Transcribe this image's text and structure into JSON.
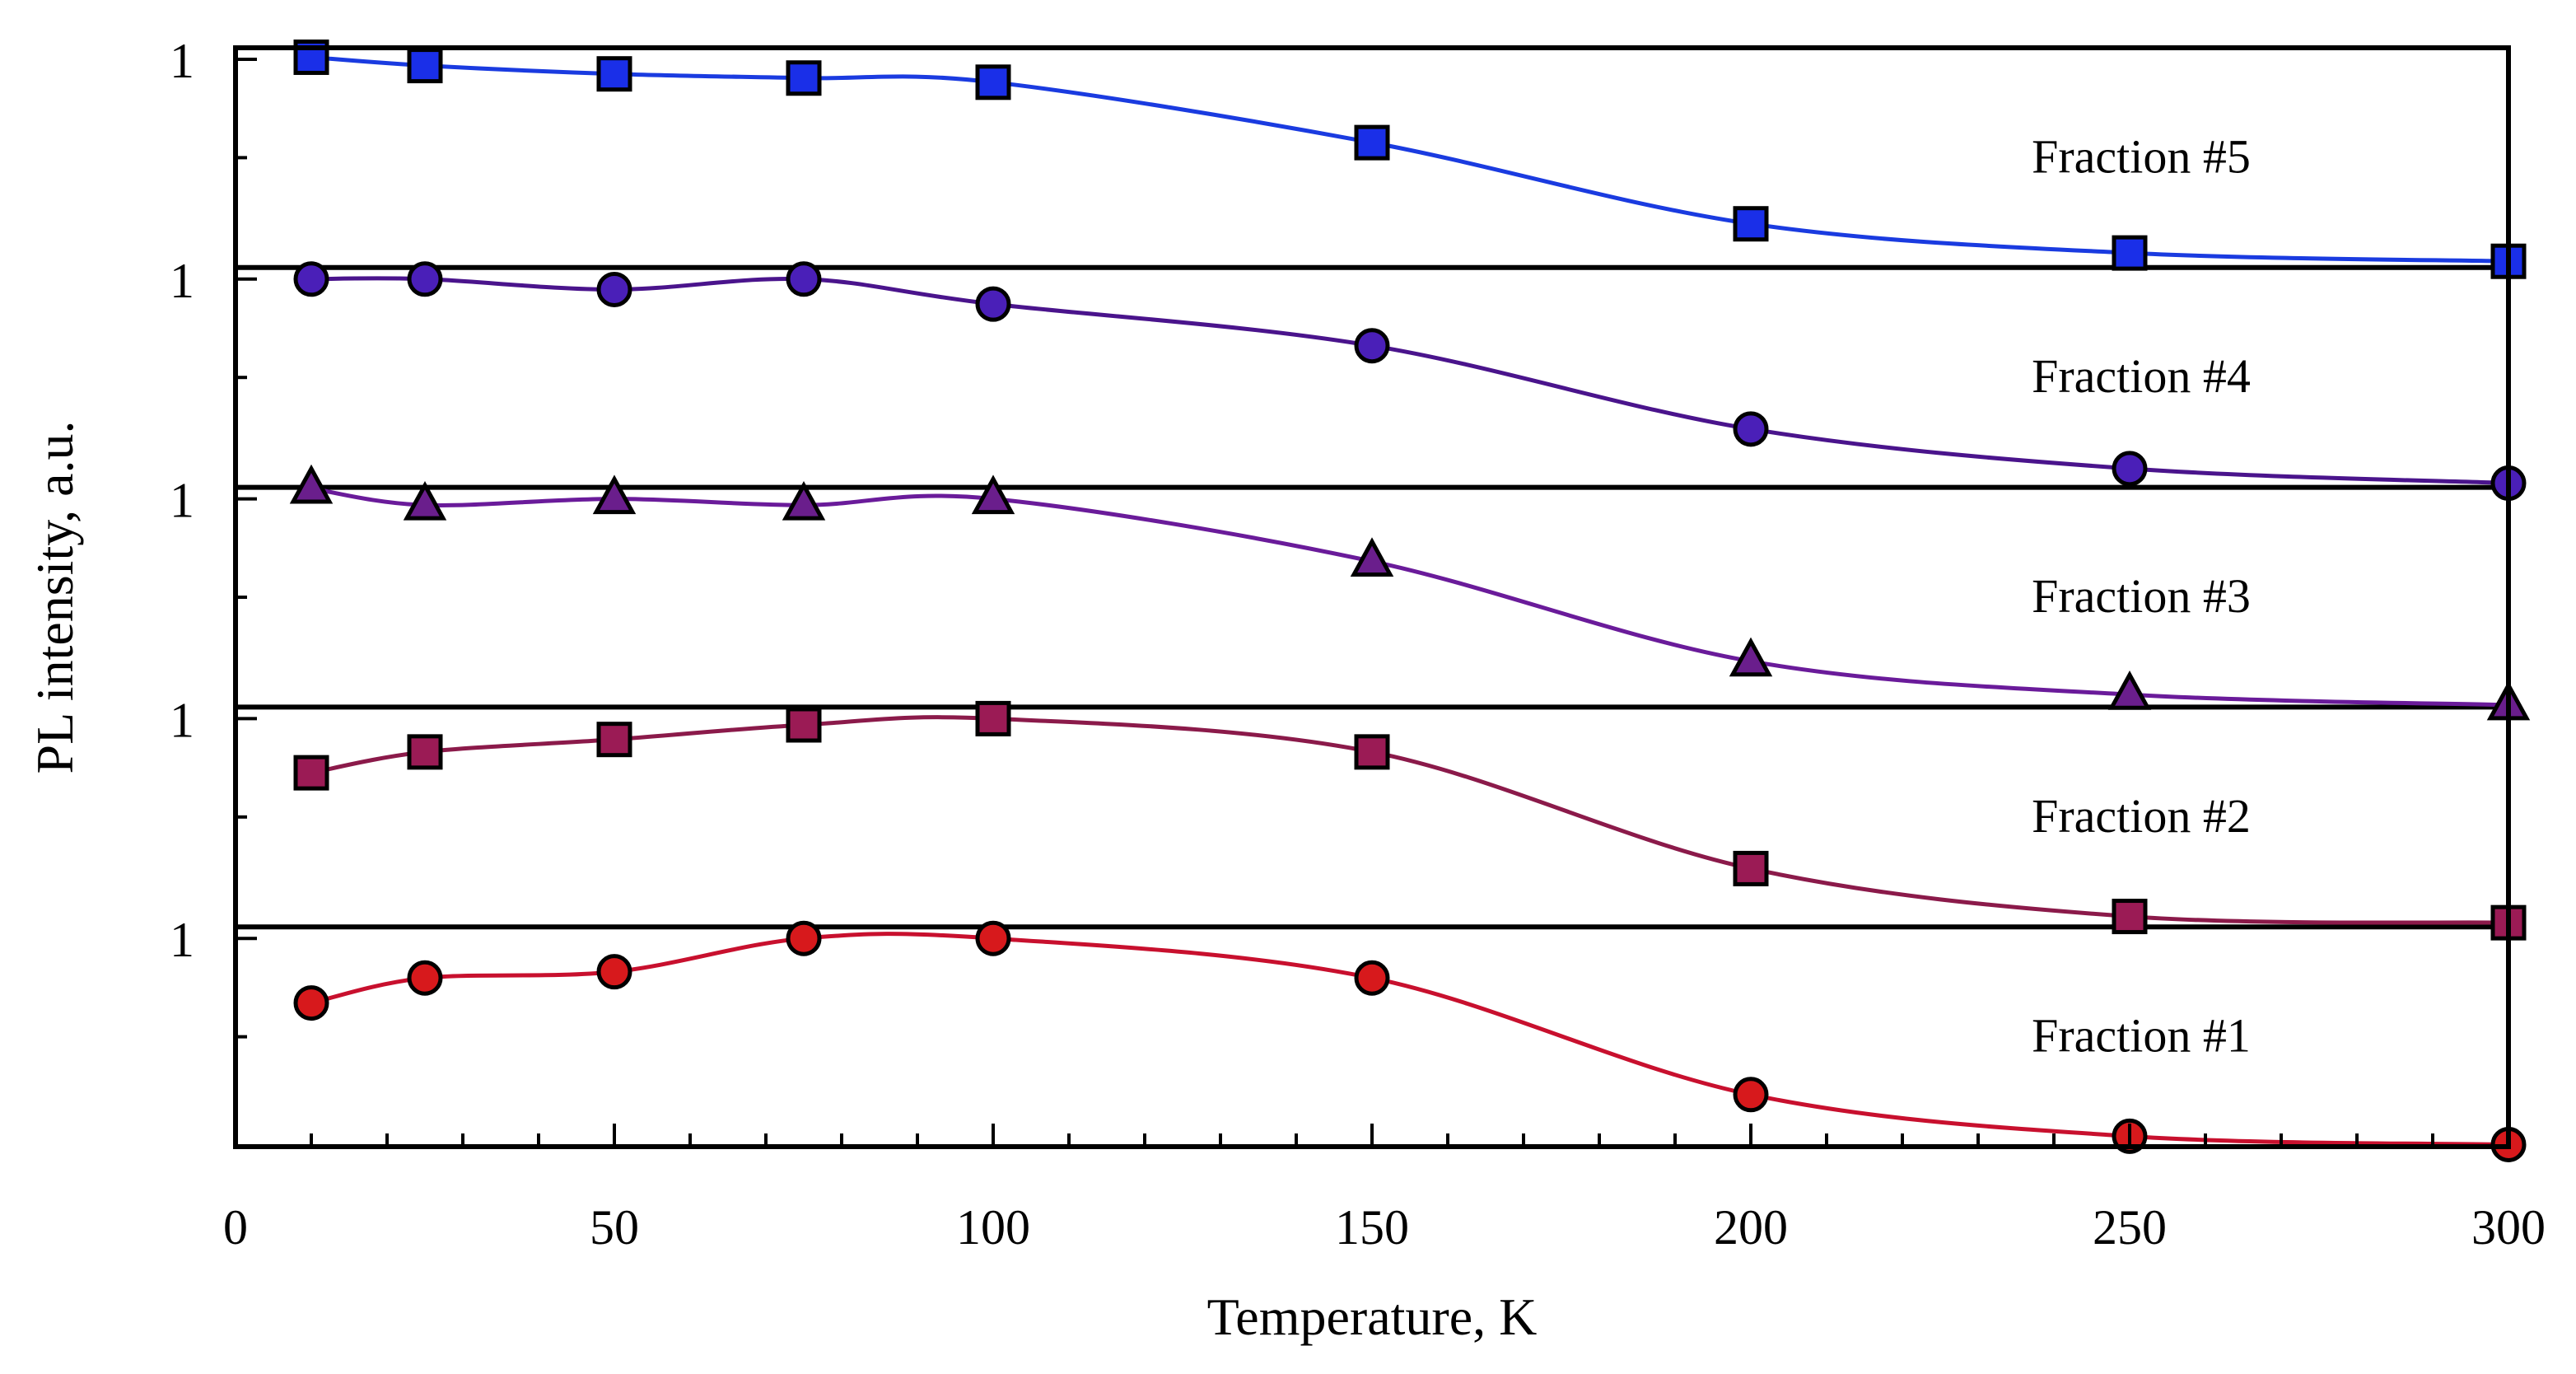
{
  "chart_data": {
    "type": "line",
    "xlabel": "Temperature, K",
    "ylabel": "PL intensity, a.u.",
    "xlim": [
      0,
      300
    ],
    "x_ticks": [
      "0",
      "50",
      "100",
      "150",
      "200",
      "250",
      "300"
    ],
    "y_tick_label": "1",
    "y_ticks": [
      "1",
      "1",
      "1",
      "1",
      "1"
    ],
    "ylim_per_panel": [
      0,
      1
    ],
    "grid": false,
    "x": [
      10,
      25,
      50,
      75,
      100,
      150,
      200,
      250,
      300
    ],
    "series": [
      {
        "name": "Fraction #1",
        "color": "#d7191c",
        "line_color": "#c8102e",
        "marker": "circle",
        "values": [
          0.69,
          0.81,
          0.84,
          1.0,
          1.0,
          0.81,
          0.25,
          0.05,
          0.01
        ]
      },
      {
        "name": "Fraction #2",
        "color": "#9b1b55",
        "line_color": "#8b1a4a",
        "marker": "square",
        "values": [
          0.74,
          0.84,
          0.9,
          0.97,
          1.0,
          0.84,
          0.28,
          0.05,
          0.02
        ]
      },
      {
        "name": "Fraction #3",
        "color": "#6a1e8c",
        "line_color": "#6a1b9a",
        "marker": "triangle",
        "values": [
          1.05,
          0.97,
          1.0,
          0.97,
          1.0,
          0.7,
          0.22,
          0.06,
          0.01
        ]
      },
      {
        "name": "Fraction #4",
        "color": "#4a1fb8",
        "line_color": "#4a148c",
        "marker": "circle",
        "values": [
          1.0,
          1.0,
          0.95,
          1.0,
          0.88,
          0.68,
          0.28,
          0.09,
          0.02
        ]
      },
      {
        "name": "Fraction #5",
        "color": "#1a2fe8",
        "line_color": "#1a3be0",
        "marker": "square",
        "values": [
          1.01,
          0.97,
          0.93,
          0.91,
          0.89,
          0.6,
          0.21,
          0.07,
          0.03
        ]
      }
    ]
  }
}
